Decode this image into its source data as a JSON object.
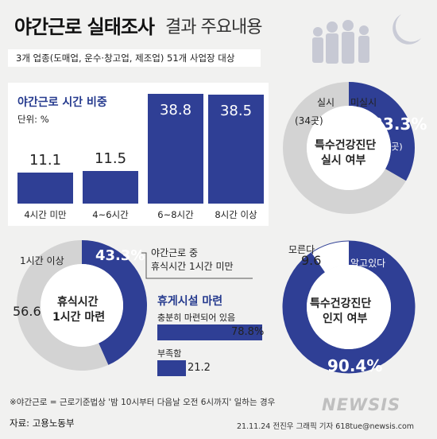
{
  "header": {
    "title_main": "야간근로 실태조사",
    "title_sub": "결과 주요내용",
    "subtitle": "3개 업종(도매업, 운수·창고업, 제조업) 51개 사업장 대상"
  },
  "colors": {
    "navy": "#2f3f95",
    "gray": "#d3d3d3",
    "background": "#f1f1f0"
  },
  "icons": {
    "people": "workers-silhouette-icon",
    "moon": "crescent-moon-icon"
  },
  "chart_data": [
    {
      "type": "bar",
      "title": "야간근로 시간 비중",
      "unit": "단위: %",
      "categories": [
        "4시간 미만",
        "4~6시간",
        "6~8시간",
        "8시간 이상"
      ],
      "values": [
        11.1,
        11.5,
        38.8,
        38.5
      ],
      "value_labels": [
        "11.1",
        "11.5",
        "38.8",
        "38.5"
      ],
      "ylim": [
        0,
        40
      ]
    },
    {
      "type": "pie",
      "center_label": [
        "특수건강진단",
        "실시 여부"
      ],
      "slices": [
        {
          "name": "미실시",
          "value": 33.3,
          "value_label": "33.3%",
          "count": "(17곳)"
        },
        {
          "name": "실시",
          "value": 66.7,
          "count": "(34곳)"
        }
      ]
    },
    {
      "type": "pie",
      "center_label": [
        "휴식시간",
        "1시간 마련"
      ],
      "slices": [
        {
          "name": "1시간 미만",
          "value": 43.3,
          "value_label": "43.3%"
        },
        {
          "name": "1시간 이상",
          "value": 56.6,
          "value_label": "56.6"
        }
      ],
      "annotation": [
        "야간근로 중",
        "휴식시간 1시간 미만"
      ]
    },
    {
      "type": "bar",
      "title": "휴게시설 마련",
      "categories": [
        "충분히 마련되어 있음",
        "부족함"
      ],
      "values": [
        78.8,
        21.2
      ],
      "value_labels": [
        "78.8%",
        "21.2"
      ]
    },
    {
      "type": "pie",
      "center_label": [
        "특수건강진단",
        "인지 여부"
      ],
      "slices": [
        {
          "name": "알고있다",
          "value": 90.4,
          "value_label": "90.4%"
        },
        {
          "name": "모른다",
          "value": 9.6,
          "value_label": "9.6"
        }
      ]
    }
  ],
  "footer": {
    "footnote": "※야간근로 = 근로기준법상 '밤 10시부터 다음날 오전 6시까지' 일하는 경우",
    "source": "자료: 고용노동부",
    "credit": "21.11.24 전진우 그래픽 기자 618tue@newsis.com",
    "logo": "NEWSIS"
  }
}
